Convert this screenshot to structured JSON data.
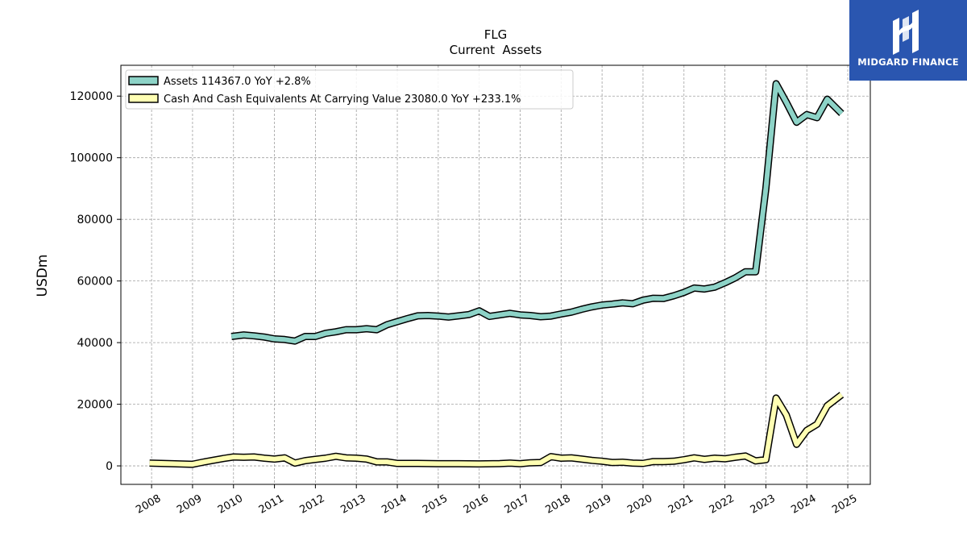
{
  "chart_data": {
    "type": "line",
    "title": "FLG",
    "subtitle": "Current  Assets",
    "ylabel": "USDm",
    "xlabel": "",
    "ylim": [
      -6000,
      130000
    ],
    "xlim": [
      2007.25,
      2025.55
    ],
    "yticks": [
      0,
      20000,
      40000,
      60000,
      80000,
      100000,
      120000
    ],
    "xticks": [
      2008,
      2009,
      2010,
      2011,
      2012,
      2013,
      2014,
      2015,
      2016,
      2017,
      2018,
      2019,
      2020,
      2021,
      2022,
      2023,
      2024,
      2025
    ],
    "grid": true,
    "legend_position": "top-left",
    "series": [
      {
        "name": "Assets  114367.0 YoY +2.8%",
        "color": "#8dd3c7",
        "points": [
          [
            2009.95,
            42000
          ],
          [
            2010.25,
            42500
          ],
          [
            2010.5,
            42200
          ],
          [
            2010.75,
            41800
          ],
          [
            2011.0,
            41200
          ],
          [
            2011.25,
            41000
          ],
          [
            2011.5,
            40500
          ],
          [
            2011.75,
            42000
          ],
          [
            2012.0,
            42000
          ],
          [
            2012.25,
            43000
          ],
          [
            2012.5,
            43500
          ],
          [
            2012.75,
            44200
          ],
          [
            2013.0,
            44200
          ],
          [
            2013.25,
            44500
          ],
          [
            2013.5,
            44200
          ],
          [
            2013.75,
            45800
          ],
          [
            2014.0,
            46800
          ],
          [
            2014.25,
            47800
          ],
          [
            2014.5,
            48700
          ],
          [
            2014.75,
            48800
          ],
          [
            2015.0,
            48600
          ],
          [
            2015.25,
            48300
          ],
          [
            2015.5,
            48700
          ],
          [
            2015.75,
            49100
          ],
          [
            2016.0,
            50300
          ],
          [
            2016.25,
            48500
          ],
          [
            2016.5,
            49000
          ],
          [
            2016.75,
            49500
          ],
          [
            2017.0,
            49000
          ],
          [
            2017.25,
            48800
          ],
          [
            2017.5,
            48400
          ],
          [
            2017.75,
            48600
          ],
          [
            2018.0,
            49300
          ],
          [
            2018.25,
            49900
          ],
          [
            2018.5,
            50800
          ],
          [
            2018.75,
            51600
          ],
          [
            2019.0,
            52200
          ],
          [
            2019.25,
            52500
          ],
          [
            2019.5,
            52900
          ],
          [
            2019.75,
            52600
          ],
          [
            2020.0,
            53800
          ],
          [
            2020.25,
            54400
          ],
          [
            2020.5,
            54300
          ],
          [
            2020.75,
            55200
          ],
          [
            2021.0,
            56300
          ],
          [
            2021.25,
            57700
          ],
          [
            2021.5,
            57400
          ],
          [
            2021.75,
            58000
          ],
          [
            2022.0,
            59400
          ],
          [
            2022.25,
            61000
          ],
          [
            2022.5,
            63000
          ],
          [
            2022.75,
            63000
          ],
          [
            2023.0,
            90000
          ],
          [
            2023.25,
            124000
          ],
          [
            2023.5,
            118000
          ],
          [
            2023.75,
            111500
          ],
          [
            2024.0,
            114000
          ],
          [
            2024.25,
            113000
          ],
          [
            2024.5,
            119000
          ],
          [
            2024.85,
            114367
          ]
        ]
      },
      {
        "name": "Cash And Cash Equivalents At Carrying Value  23080.0 YoY +233.1%",
        "color": "#ffffb3",
        "points": [
          [
            2007.95,
            900
          ],
          [
            2008.5,
            700
          ],
          [
            2009.0,
            500
          ],
          [
            2009.25,
            1200
          ],
          [
            2009.5,
            1800
          ],
          [
            2009.75,
            2400
          ],
          [
            2010.0,
            2900
          ],
          [
            2010.25,
            2800
          ],
          [
            2010.5,
            2900
          ],
          [
            2010.75,
            2500
          ],
          [
            2011.0,
            2200
          ],
          [
            2011.25,
            2600
          ],
          [
            2011.5,
            900
          ],
          [
            2011.75,
            1700
          ],
          [
            2012.0,
            2100
          ],
          [
            2012.25,
            2500
          ],
          [
            2012.5,
            3100
          ],
          [
            2012.75,
            2600
          ],
          [
            2013.0,
            2500
          ],
          [
            2013.25,
            2200
          ],
          [
            2013.5,
            1300
          ],
          [
            2013.75,
            1300
          ],
          [
            2014.0,
            800
          ],
          [
            2014.5,
            800
          ],
          [
            2015.0,
            700
          ],
          [
            2015.5,
            700
          ],
          [
            2016.0,
            650
          ],
          [
            2016.5,
            750
          ],
          [
            2016.75,
            900
          ],
          [
            2017.0,
            700
          ],
          [
            2017.25,
            1000
          ],
          [
            2017.5,
            1100
          ],
          [
            2017.75,
            3000
          ],
          [
            2018.0,
            2500
          ],
          [
            2018.25,
            2600
          ],
          [
            2018.5,
            2200
          ],
          [
            2018.75,
            1800
          ],
          [
            2019.0,
            1500
          ],
          [
            2019.25,
            1100
          ],
          [
            2019.5,
            1200
          ],
          [
            2019.75,
            900
          ],
          [
            2020.0,
            800
          ],
          [
            2020.25,
            1400
          ],
          [
            2020.5,
            1400
          ],
          [
            2020.75,
            1500
          ],
          [
            2021.0,
            2000
          ],
          [
            2021.25,
            2600
          ],
          [
            2021.5,
            2100
          ],
          [
            2021.75,
            2500
          ],
          [
            2022.0,
            2300
          ],
          [
            2022.25,
            2800
          ],
          [
            2022.5,
            3200
          ],
          [
            2022.75,
            1600
          ],
          [
            2023.0,
            2000
          ],
          [
            2023.25,
            22000
          ],
          [
            2023.5,
            16500
          ],
          [
            2023.75,
            7000
          ],
          [
            2024.0,
            11500
          ],
          [
            2024.25,
            13500
          ],
          [
            2024.5,
            19500
          ],
          [
            2024.85,
            23080
          ]
        ]
      }
    ]
  },
  "logo": {
    "text": "MIDGARD FINANCE"
  }
}
